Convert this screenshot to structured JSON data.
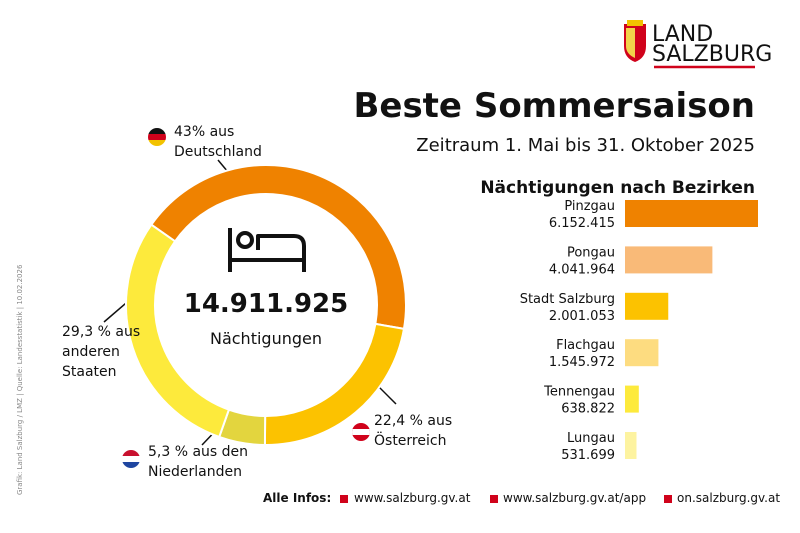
{
  "header": {
    "logo_line1": "LAND",
    "logo_line2": "SALZBURG",
    "title": "Beste Sommersaison",
    "subtitle": "Zeitraum 1. Mai bis 31. Oktober 2025"
  },
  "chart_data": [
    {
      "type": "donut",
      "center_value": "14.911.925",
      "center_label": "Nächtigungen",
      "categories": [
        "43% aus Deutschland",
        "22,4 % aus Österreich",
        "5,3 % aus den Niederlanden",
        "29,3 % aus anderen Staaten"
      ],
      "values": [
        43,
        22.4,
        5.3,
        29.3
      ],
      "colors": [
        "#ef8200",
        "#fcc200",
        "#e3d53e",
        "#fdea3c"
      ]
    },
    {
      "type": "hbar",
      "title": "Nächtigungen nach Bezirken",
      "categories": [
        "Pinzgau",
        "Pongau",
        "Stadt Salzburg",
        "Flachgau",
        "Tennengau",
        "Lungau"
      ],
      "values": [
        6152415,
        4041964,
        2001053,
        1545972,
        638822,
        531699
      ],
      "value_labels": [
        "6.152.415",
        "4.041.964",
        "2.001.053",
        "1.545.972",
        "638.822",
        "531.699"
      ],
      "colors": [
        "#ef8200",
        "#f9ba78",
        "#fcc200",
        "#fddc80",
        "#fdea3c",
        "#fdf3a0"
      ]
    }
  ],
  "footer": {
    "label": "Alle Infos:",
    "links": [
      "www.salzburg.gv.at",
      "www.salzburg.gv.at/app",
      "on.salzburg.gv.at"
    ]
  },
  "credit": "Grafik: Land Salzburg / LMZ | Quelle: Landesstatistik | 10.02.2026"
}
